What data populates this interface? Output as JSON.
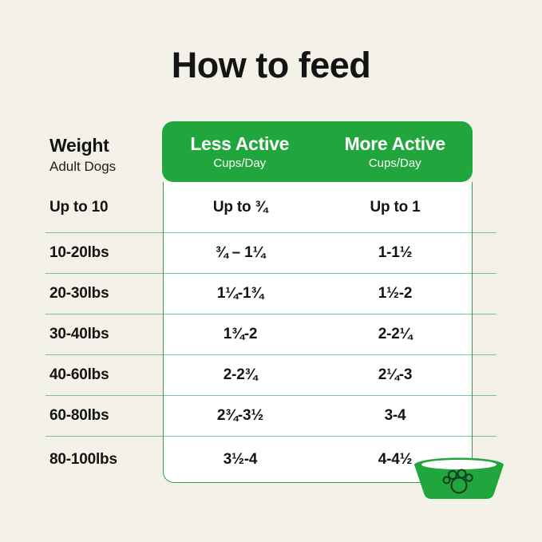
{
  "title": "How to feed",
  "weight_header": {
    "label": "Weight",
    "sublabel": "Adult Dogs"
  },
  "columns": [
    {
      "label": "Less Active",
      "sublabel": "Cups/Day"
    },
    {
      "label": "More Active",
      "sublabel": "Cups/Day"
    }
  ],
  "table": {
    "rows": [
      {
        "weight": "Up to 10",
        "less_active": "Up to ¾",
        "more_active": "Up to 1"
      },
      {
        "weight": "10-20lbs",
        "less_active": "¾ – 1¼",
        "more_active": "1-1½"
      },
      {
        "weight": "20-30lbs",
        "less_active": "1¼-1¾",
        "more_active": "1½-2"
      },
      {
        "weight": "30-40lbs",
        "less_active": "1¾-2",
        "more_active": "2-2¼"
      },
      {
        "weight": "40-60lbs",
        "less_active": "2-2¾",
        "more_active": "2¼-3"
      },
      {
        "weight": "60-80lbs",
        "less_active": "2¾-3½",
        "more_active": "3-4"
      },
      {
        "weight": "80-100lbs",
        "less_active": "3½-4",
        "more_active": "4-4½"
      }
    ]
  },
  "icons": {
    "bowl": "dog-bowl-paw-icon"
  },
  "colors": {
    "background": "#F4F1E9",
    "brand_green": "#21A63E",
    "text": "#141414",
    "table_background": "#FFFFFF",
    "divider_green": "#58AE74",
    "paw_outline": "#123B20"
  }
}
